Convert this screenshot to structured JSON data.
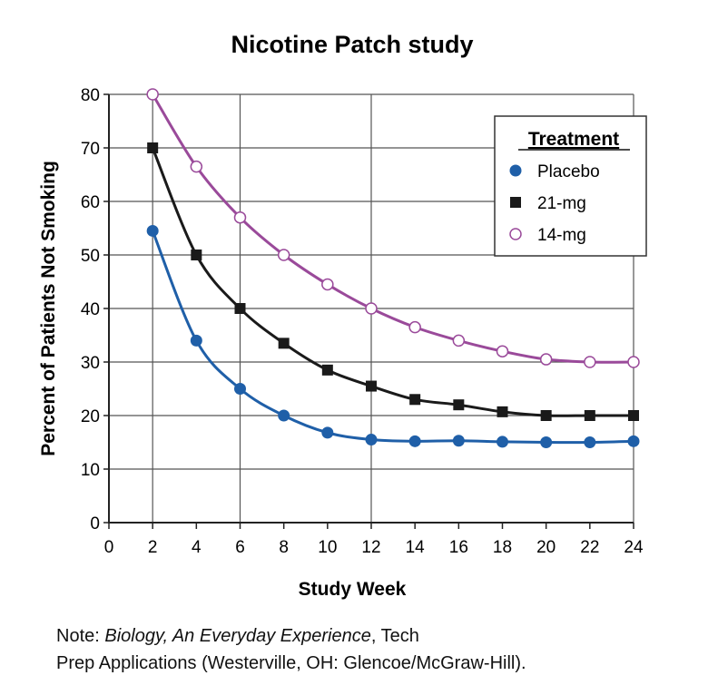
{
  "chart_data": {
    "type": "line",
    "title": "Nicotine Patch study",
    "xlabel": "Study Week",
    "ylabel": "Percent of Patients Not Smoking",
    "xlim": [
      0,
      24
    ],
    "ylim": [
      0,
      80
    ],
    "xticks": [
      0,
      2,
      4,
      6,
      8,
      10,
      12,
      14,
      16,
      18,
      20,
      22,
      24
    ],
    "yticks": [
      0,
      10,
      20,
      30,
      40,
      50,
      60,
      70,
      80
    ],
    "x_gridlines": [
      2,
      6,
      12
    ],
    "legend": {
      "title": "Treatment",
      "placement": "top-right"
    },
    "x": [
      2,
      4,
      6,
      8,
      10,
      12,
      14,
      16,
      18,
      20,
      22,
      24
    ],
    "series": [
      {
        "name": "Placebo",
        "marker": "filled-circle",
        "color": "#1f5fa8",
        "values": [
          54.5,
          34,
          25,
          20,
          16.8,
          15.5,
          15.2,
          15.3,
          15.1,
          15,
          15,
          15.2
        ]
      },
      {
        "name": "21-mg",
        "marker": "filled-square",
        "color": "#1a1a1a",
        "values": [
          70,
          50,
          40,
          33.5,
          28.5,
          25.5,
          23,
          22,
          20.7,
          20,
          20,
          20
        ]
      },
      {
        "name": "14-mg",
        "marker": "open-circle",
        "color": "#9a4a9a",
        "values": [
          80,
          66.5,
          57,
          50,
          44.5,
          40,
          36.5,
          34,
          32,
          30.5,
          30,
          30
        ]
      }
    ]
  },
  "note": {
    "prefix": "Note: ",
    "italic": "Biology, An Everyday Experience",
    "rest1": ", Tech",
    "line2": "Prep Applications (Westerville, OH: Glencoe/McGraw-Hill)."
  }
}
